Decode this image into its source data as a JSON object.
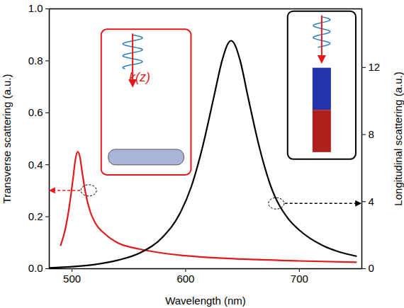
{
  "chart_data": {
    "type": "line",
    "x_label": "Wavelength (nm)",
    "y_label": "Transverse scattering (a.u.)",
    "y2_label": "Longitudinal scattering (a.u.)",
    "xlim": [
      480,
      755
    ],
    "xticks": [
      500,
      600,
      700
    ],
    "ylim": [
      0,
      1
    ],
    "yticks": [
      {
        "value": 0,
        "label": "0.0"
      },
      0.2,
      0.4,
      0.6,
      0.8,
      {
        "value": 1,
        "label": "1.0"
      }
    ],
    "y2lim": [
      0,
      15.5
    ],
    "y2ticks": [
      0,
      4,
      8,
      12
    ],
    "grid": false,
    "annotations": [
      "k(z)"
    ],
    "series": [
      {
        "color": "#e31a1c",
        "axis": "y",
        "x": [
          490,
          494,
          498,
          501,
          503,
          505,
          507,
          509,
          512,
          516,
          520,
          530,
          540,
          560,
          580,
          600,
          650,
          700,
          750
        ],
        "values": [
          0.09,
          0.15,
          0.25,
          0.35,
          0.42,
          0.45,
          0.43,
          0.37,
          0.29,
          0.22,
          0.18,
          0.13,
          0.1,
          0.075,
          0.06,
          0.05,
          0.037,
          0.03,
          0.025
        ]
      },
      {
        "color": "#000000",
        "axis": "y2",
        "x": [
          480,
          500,
          520,
          540,
          560,
          580,
          595,
          605,
          615,
          625,
          632,
          637,
          640,
          643,
          648,
          655,
          665,
          675,
          690,
          700,
          720,
          735,
          750
        ],
        "values": [
          0.05,
          0.12,
          0.25,
          0.5,
          0.95,
          1.9,
          3.3,
          4.9,
          7.3,
          10.3,
          12.4,
          13.4,
          13.6,
          13.4,
          12.4,
          10.2,
          7.2,
          4.9,
          3.0,
          2.3,
          1.4,
          1.0,
          0.75
        ]
      }
    ]
  }
}
